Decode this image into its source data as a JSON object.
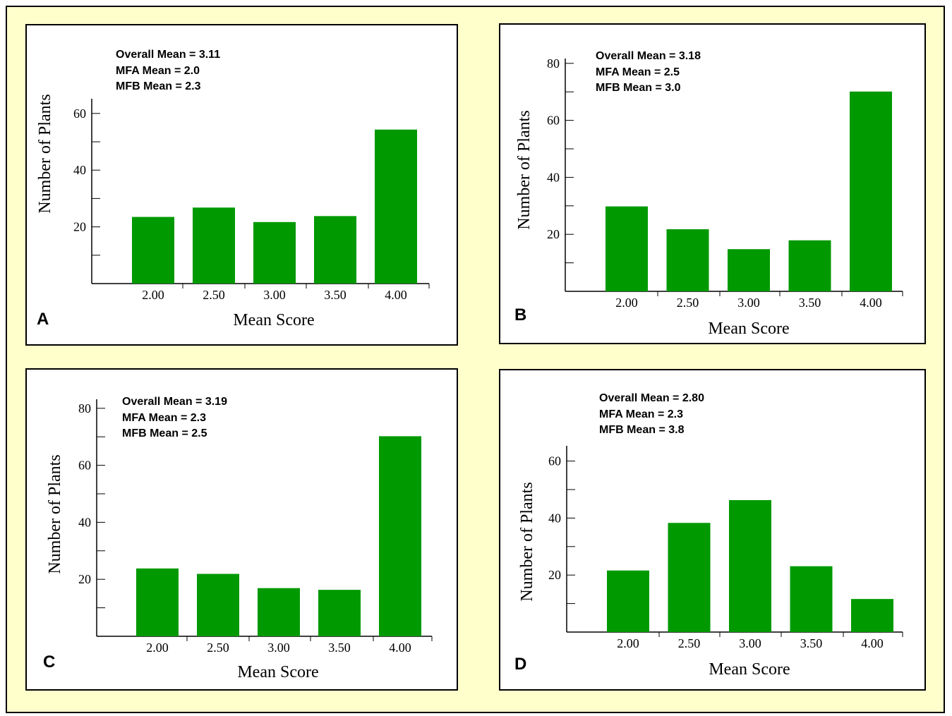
{
  "colors": {
    "bar": "#009900",
    "page_background": "#ffffcc",
    "panel_background": "#ffffff",
    "axis": "#000000"
  },
  "panels": [
    {
      "label": "A",
      "stats": [
        "Overall Mean = 3.11",
        "MFA Mean = 2.0",
        "MFB Mean = 2.3"
      ],
      "chart_data": {
        "type": "bar",
        "categories": [
          "2.00",
          "2.50",
          "3.00",
          "3.50",
          "4.00"
        ],
        "values": [
          23.5,
          26.8,
          21.7,
          23.8,
          54.3
        ],
        "xlabel": "Mean Score",
        "ylabel": "Number of Plants",
        "yticks": [
          "20",
          "40",
          "60"
        ],
        "ylim": [
          0,
          60
        ],
        "grid": false
      }
    },
    {
      "label": "B",
      "stats": [
        "Overall Mean = 3.18",
        "MFA Mean = 2.5",
        "MFB Mean = 3.0"
      ],
      "chart_data": {
        "type": "bar",
        "categories": [
          "2.00",
          "2.50",
          "3.00",
          "3.50",
          "4.00"
        ],
        "values": [
          29.8,
          21.8,
          14.8,
          17.9,
          70.1
        ],
        "xlabel": "Mean Score",
        "ylabel": "Number of Plants",
        "yticks": [
          "20",
          "40",
          "60",
          "80"
        ],
        "ylim": [
          0,
          80
        ],
        "grid": false
      }
    },
    {
      "label": "C",
      "stats": [
        "Overall Mean = 3.19",
        "MFA Mean = 2.3",
        "MFB Mean = 2.5"
      ],
      "chart_data": {
        "type": "bar",
        "categories": [
          "2.00",
          "2.50",
          "3.00",
          "3.50",
          "4.00"
        ],
        "values": [
          23.8,
          21.9,
          16.9,
          16.3,
          70.2
        ],
        "xlabel": "Mean Score",
        "ylabel": "Number of Plants",
        "yticks": [
          "20",
          "40",
          "60",
          "80"
        ],
        "ylim": [
          0,
          80
        ],
        "grid": false
      }
    },
    {
      "label": "D",
      "stats": [
        "Overall Mean = 2.80",
        "MFA Mean = 2.3",
        "MFB Mean = 3.8"
      ],
      "chart_data": {
        "type": "bar",
        "categories": [
          "2.00",
          "2.50",
          "3.00",
          "3.50",
          "4.00"
        ],
        "values": [
          21.6,
          38.3,
          46.3,
          23.1,
          11.6
        ],
        "xlabel": "Mean Score",
        "ylabel": "Number of Plants",
        "yticks": [
          "20",
          "40",
          "60"
        ],
        "ylim": [
          0,
          60
        ],
        "grid": false
      }
    }
  ]
}
